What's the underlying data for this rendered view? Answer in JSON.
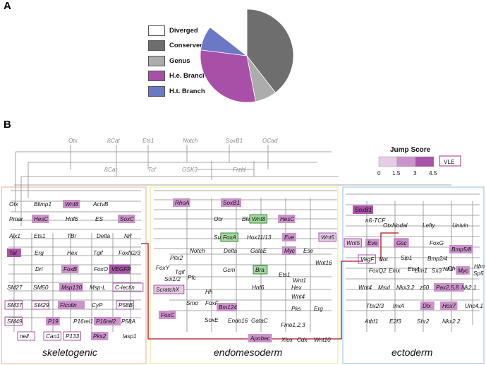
{
  "panel_a": {
    "letter": "A",
    "legend": [
      {
        "label": "Diverged",
        "color": "#ffffff"
      },
      {
        "label": "Conserved",
        "color": "#6e6e6e"
      },
      {
        "label": "Genus",
        "color": "#acacac"
      },
      {
        "label": "H.e. Branch",
        "color": "#a84fa8"
      },
      {
        "label": "H.t. Branch",
        "color": "#6b78c6"
      }
    ],
    "chart_data": {
      "type": "pie",
      "slices": [
        {
          "label": "Conserved",
          "value": 0.395,
          "color": "#6e6e6e"
        },
        {
          "label": "Genus",
          "value": 0.075,
          "color": "#acacac"
        },
        {
          "label": "H.e. Branch",
          "value": 0.3,
          "color": "#a84fa8"
        },
        {
          "label": "H.t. Branch",
          "value": 0.085,
          "color": "#6b78c6"
        },
        {
          "label": "Diverged",
          "value": 0.145,
          "color": "#ffffff"
        }
      ]
    }
  },
  "panel_b": {
    "letter": "B",
    "jump_score": {
      "title": "Jump Score",
      "ticks": [
        "0",
        "1.5",
        "3",
        "4.5"
      ],
      "colors": [
        "#e6cbe6",
        "#cc92cc",
        "#a953a9"
      ],
      "vle_label": "VLE"
    },
    "regions": [
      "skeletogenic",
      "endomesoderm",
      "ectoderm"
    ],
    "top_genes": [
      "Otx",
      "ßCat",
      "Ets1",
      "Notch",
      "SoxB1",
      "GCad",
      "ßCat",
      "Tcf",
      "GSK3",
      "Frzld"
    ],
    "skeletogenic_genes": [
      "Otx",
      "Blimp1",
      "Wnt8",
      "ActvB",
      "Pmar",
      "HesC",
      "SoxC",
      "Hnf6",
      "ES",
      "Alx1",
      "Ets1",
      "TBr",
      "Delta",
      "Nrl",
      "Tel",
      "Erg",
      "Hex",
      "Tgif",
      "FoxN2/3",
      "Dri",
      "FoxB",
      "FoxO",
      "VEGFR",
      "SM27",
      "SM50",
      "Msp130",
      "Msp-L",
      "C-lectin",
      "SM37",
      "SM29",
      "Ficolin",
      "CyP",
      "P58B",
      "SM49",
      "P19",
      "P16rel1",
      "P16rel2",
      "P58A",
      "nell",
      "Can1",
      "P133",
      "Pks2",
      "lasp1"
    ],
    "endomesoderm_genes": [
      "RhoA",
      "SoxB1",
      "Otx",
      "Blimp1",
      "Wnt8",
      "HesC",
      "SuH",
      "FoxA",
      "Hox11/13",
      "Eve",
      "Wnt5",
      "Myc",
      "Ese",
      "Wnt16",
      "Pitx2",
      "Notch",
      "Delta",
      "GataE",
      "FoxY",
      "Six1/2",
      "Tgif",
      "Gcm",
      "Bra",
      "Ets1",
      "Wnt1",
      "ScratchX",
      "Pfc",
      "Hh",
      "Hnf6",
      "Hex",
      "Wnt4",
      "Smo",
      "FoxF",
      "Bm124",
      "Pks",
      "Erg",
      "FoxC",
      "Endo16",
      "GataC",
      "Fmo1,2,3",
      "SoxE",
      "Apobec",
      "Xlox",
      "Cdx",
      "Wnt10"
    ],
    "ectoderm_genes": [
      "SoxB1",
      "nß-TCF",
      "Otx",
      "Nodal",
      "Lefty",
      "Univin",
      "Wnt5",
      "Eve",
      "Gsc",
      "FoxG",
      "Bmp5/8",
      "Chordin",
      "Sip1",
      "Bmp2/4",
      "Hbn",
      "VegF",
      "Not",
      "Ets4",
      "Nk1",
      "Myc",
      "Sp5",
      "FoxQ2",
      "Emx",
      "Lim1",
      "Sx3",
      "Wnt4",
      "Msxl",
      "Nkx3.2",
      "z60",
      "Pax2,5,8",
      "Nk2.1",
      "Tbx2/3",
      "InxA",
      "Dlx",
      "Hox7",
      "Unc4.1",
      "Atbf1",
      "E2f3",
      "Shr2",
      "Nkx2.2"
    ]
  }
}
